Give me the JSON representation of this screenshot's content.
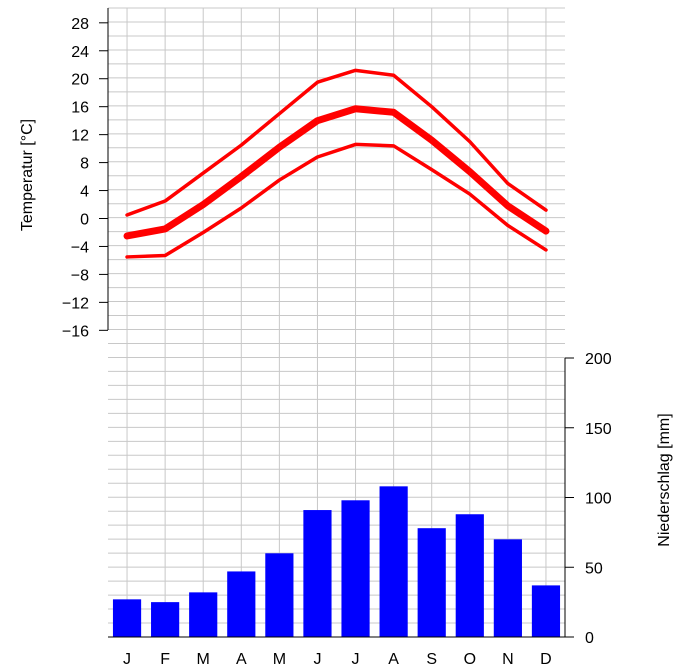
{
  "chart_data": {
    "type": "climate-diagram",
    "categories": [
      "J",
      "F",
      "M",
      "A",
      "M",
      "J",
      "J",
      "A",
      "S",
      "O",
      "N",
      "D"
    ],
    "temperature": {
      "ylabel": "Temperatur [°C]",
      "ticks": [
        28,
        24,
        20,
        16,
        12,
        8,
        4,
        0,
        -4,
        -8,
        -12,
        -16
      ],
      "tick_labels": [
        "28",
        "24",
        "20",
        "16",
        "12",
        "8",
        "4",
        "0",
        "−4",
        "−8",
        "−12",
        "−16"
      ],
      "color": "#ff0000",
      "series": [
        {
          "name": "",
          "values": [
            0.5,
            2.5,
            6.5,
            10.5,
            15.0,
            19.5,
            21.2,
            20.5,
            16.0,
            11.0,
            5.0,
            1.2
          ]
        },
        {
          "name": "",
          "values": [
            -2.5,
            -1.5,
            2.0,
            6.0,
            10.2,
            14.0,
            15.7,
            15.2,
            11.2,
            6.7,
            1.8,
            -1.8
          ]
        },
        {
          "name": "",
          "values": [
            -5.5,
            -5.3,
            -2.0,
            1.5,
            5.5,
            8.8,
            10.6,
            10.4,
            7.0,
            3.5,
            -1.0,
            -4.5
          ]
        }
      ]
    },
    "precipitation": {
      "ylabel": "Niederschlag [mm]",
      "ticks": [
        0,
        50,
        100,
        150,
        200
      ],
      "tick_labels": [
        "0",
        "50",
        "100",
        "150",
        "200"
      ],
      "color": "#0000ff",
      "values": [
        27,
        25,
        32,
        47,
        60,
        91,
        98,
        108,
        78,
        88,
        70,
        37
      ]
    },
    "grid": true
  }
}
